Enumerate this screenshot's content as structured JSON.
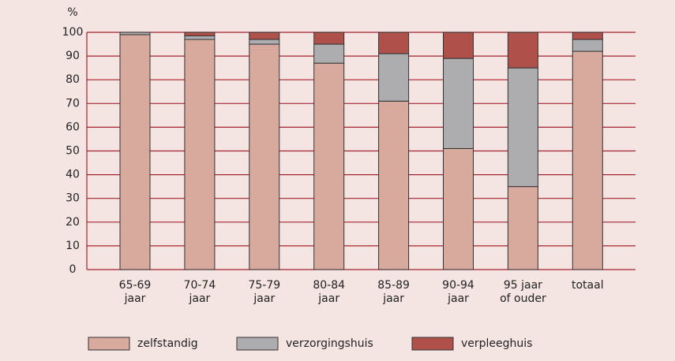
{
  "chart_data": {
    "type": "stacked-bar",
    "y_label": "%",
    "categories": [
      [
        "65-69",
        "jaar"
      ],
      [
        "70-74",
        "jaar"
      ],
      [
        "75-79",
        "jaar"
      ],
      [
        "80-84",
        "jaar"
      ],
      [
        "85-89",
        "jaar"
      ],
      [
        "90-94",
        "jaar"
      ],
      [
        "95 jaar",
        "of ouder"
      ],
      [
        "totaal"
      ]
    ],
    "series": [
      {
        "name": "zelfstandig",
        "color": "#d8a99d",
        "values": [
          99,
          97,
          95,
          87,
          71,
          51,
          35,
          92
        ]
      },
      {
        "name": "verzorgingshuis",
        "color": "#adadaf",
        "values": [
          1,
          1.5,
          2,
          8,
          20,
          38,
          50,
          5
        ]
      },
      {
        "name": "verpleeghuis",
        "color": "#b0504a",
        "values": [
          0,
          1.5,
          3,
          5,
          9,
          11,
          15,
          3
        ]
      }
    ],
    "ylim": [
      0,
      100
    ],
    "yticks": [
      0,
      10,
      20,
      30,
      40,
      50,
      60,
      70,
      80,
      90,
      100
    ],
    "grid": true
  }
}
